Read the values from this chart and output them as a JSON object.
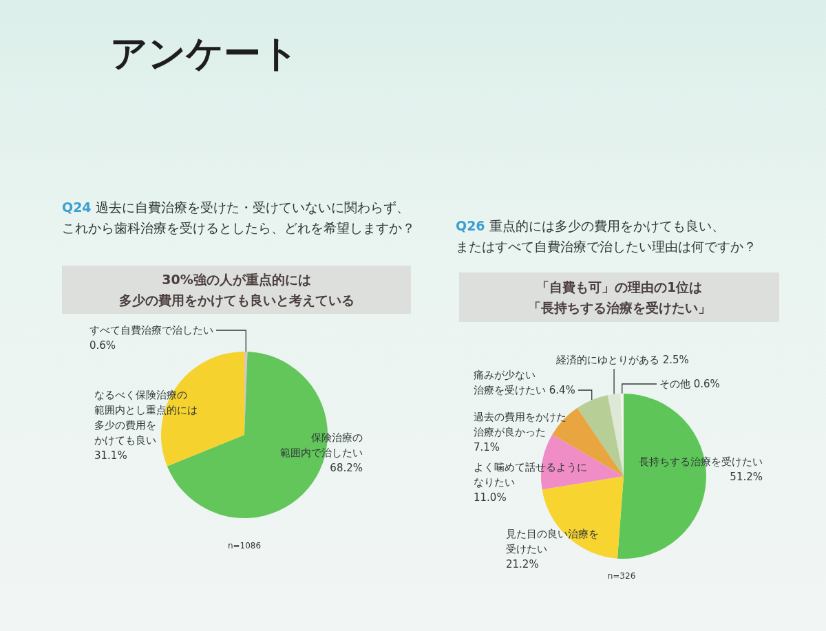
{
  "chart_data": [
    {
      "type": "pie",
      "title": "Q24 過去に自費治療を受けた・受けていないに関わらず、これから歯科治療を受けるとしたら、どれを希望しますか？",
      "subtitle": "30%強の人が重点的には多少の費用をかけても良いと考えている",
      "categories": [
        "すべて自費治療で治したい",
        "保険治療の範囲内で治したい",
        "なるべく保険治療の範囲内とし重点的には多少の費用をかけても良い"
      ],
      "values": [
        0.6,
        68.2,
        31.1
      ],
      "value_labels": [
        "0.6%",
        "68.2%",
        "31.1%"
      ],
      "colors": [
        "#d9c3c6",
        "#62c65a",
        "#f6d22e"
      ],
      "annotations": [
        "アンケート",
        "n=1086"
      ]
    },
    {
      "type": "pie",
      "title": "Q26 重点的には多少の費用をかけても良い、またはすべて自費治療で治したい理由は何ですか？",
      "subtitle": "「自費も可」の理由の1位は「長持ちする治療を受けたい」",
      "categories": [
        "長持ちする治療を受けたい",
        "見た目の良い治療を受けたい",
        "よく噛めて話せるようになりたい",
        "過去の費用をかけた治療が良かった",
        "痛みが少ない治療を受けたい",
        "経済的にゆとりがある",
        "その他"
      ],
      "values": [
        51.2,
        21.2,
        11.0,
        7.1,
        6.4,
        2.5,
        0.6
      ],
      "value_labels": [
        "51.2%",
        "21.2%",
        "11.0%",
        "7.1%",
        "6.4%",
        "2.5%",
        "0.6%"
      ],
      "colors": [
        "#5ec658",
        "#f7d430",
        "#f18dc6",
        "#e9a53f",
        "#b7cf96",
        "#dde8d6",
        "#f4f4ec"
      ],
      "annotations": [
        "n=326"
      ]
    }
  ]
}
